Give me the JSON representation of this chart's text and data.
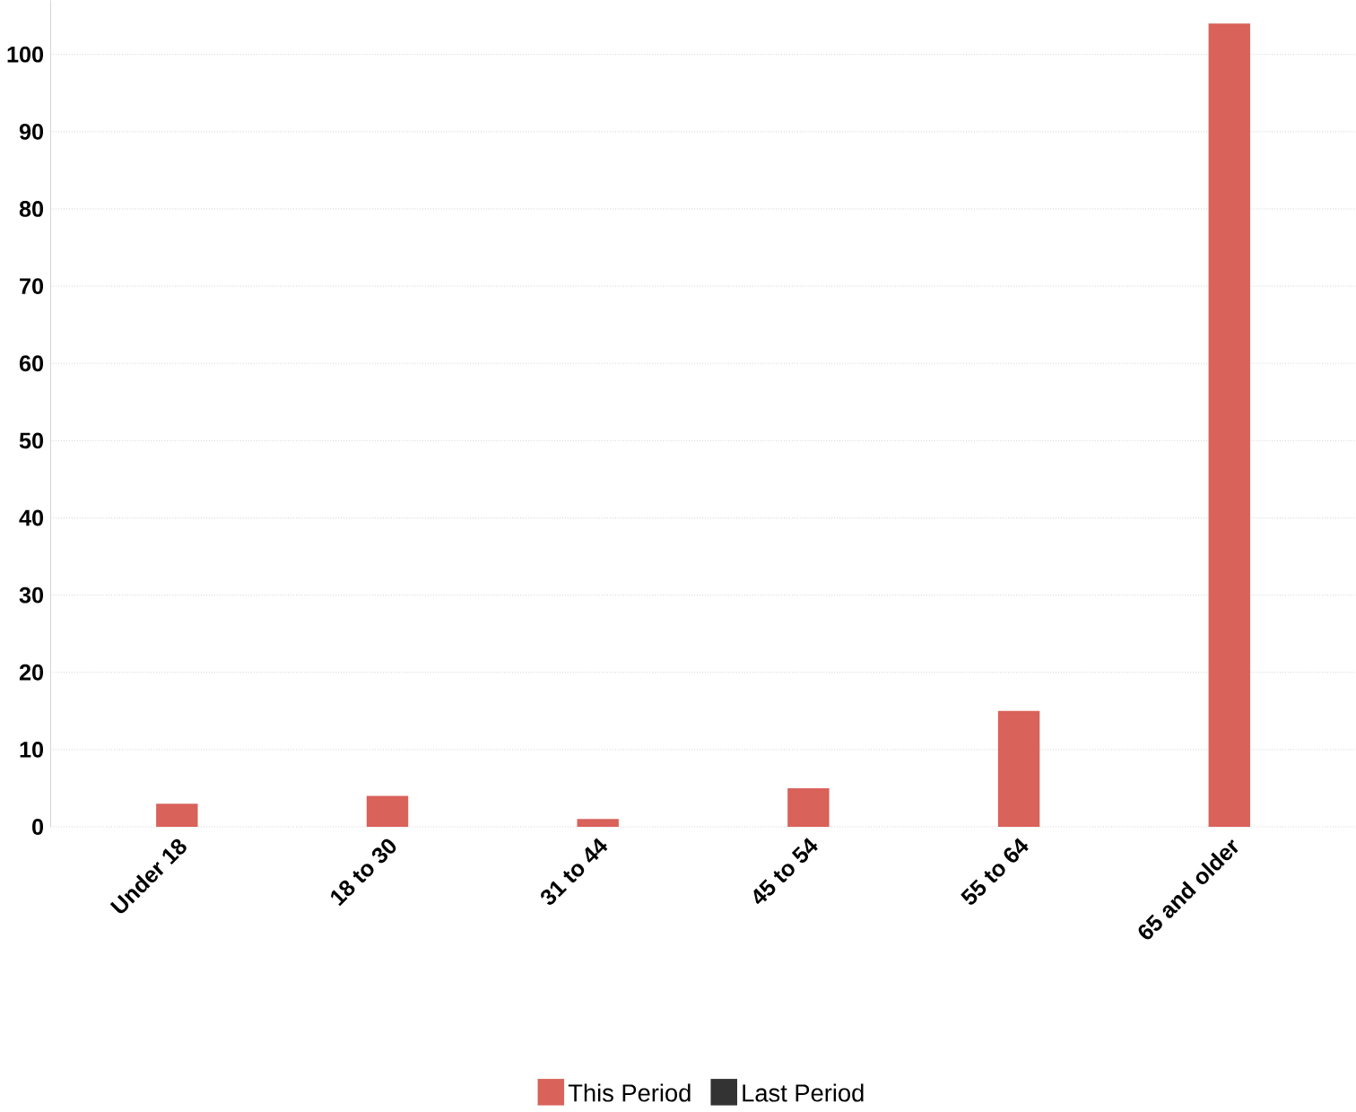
{
  "chart_data": {
    "type": "bar",
    "categories": [
      "Under 18",
      "18 to 30",
      "31 to 44",
      "45 to 54",
      "55 to 64",
      "65 and older"
    ],
    "series": [
      {
        "name": "This Period",
        "color": "#d9625a",
        "values": [
          3,
          4,
          1,
          5,
          15,
          104
        ]
      },
      {
        "name": "Last Period",
        "color": "#333333",
        "values": [
          null,
          null,
          null,
          null,
          null,
          null
        ]
      }
    ],
    "ylim": [
      0,
      107
    ],
    "yticks": [
      0,
      10,
      20,
      30,
      40,
      50,
      60,
      70,
      80,
      90,
      100
    ],
    "grid": "y",
    "legend": "bottom"
  }
}
